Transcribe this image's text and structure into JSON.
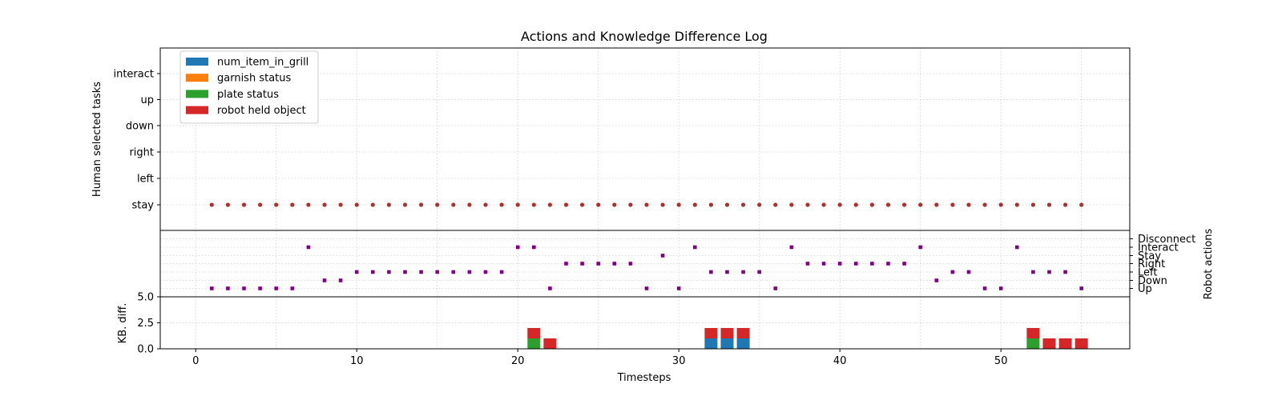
{
  "chart_data": [
    {
      "panel": "human",
      "type": "scatter",
      "title": "Actions and Knowledge Difference Log",
      "ylabel": "Human selected tasks",
      "y_categories": [
        "stay",
        "left",
        "right",
        "down",
        "up",
        "interact"
      ],
      "xlim": [
        -2.2,
        58
      ],
      "grid": true,
      "legend_placement": "upper-left",
      "legend": [
        {
          "label": "num_item_in_grill",
          "color": "#1f77b4"
        },
        {
          "label": "garnish status",
          "color": "#ff7f0e"
        },
        {
          "label": "plate status",
          "color": "#2ca02c"
        },
        {
          "label": "robot held object",
          "color": "#d62728"
        }
      ],
      "marker_color": "#a83232",
      "series": [
        {
          "x": [
            1,
            2,
            3,
            4,
            5,
            6,
            7,
            8,
            9,
            10,
            11,
            12,
            13,
            14,
            15,
            16,
            17,
            18,
            19,
            20,
            21,
            22,
            23,
            24,
            25,
            26,
            27,
            28,
            29,
            30,
            31,
            32,
            33,
            34,
            35,
            36,
            37,
            38,
            39,
            40,
            41,
            42,
            43,
            44,
            45,
            46,
            47,
            48,
            49,
            50,
            51,
            52,
            53,
            54,
            55
          ],
          "y": [
            "stay",
            "stay",
            "stay",
            "stay",
            "stay",
            "stay",
            "stay",
            "stay",
            "stay",
            "stay",
            "stay",
            "stay",
            "stay",
            "stay",
            "stay",
            "stay",
            "stay",
            "stay",
            "stay",
            "stay",
            "stay",
            "stay",
            "stay",
            "stay",
            "stay",
            "stay",
            "stay",
            "stay",
            "stay",
            "stay",
            "stay",
            "stay",
            "stay",
            "stay",
            "stay",
            "stay",
            "stay",
            "stay",
            "stay",
            "stay",
            "stay",
            "stay",
            "stay",
            "stay",
            "stay",
            "stay",
            "stay",
            "stay",
            "stay",
            "stay",
            "stay",
            "stay",
            "stay",
            "stay",
            "stay"
          ]
        }
      ]
    },
    {
      "panel": "robot",
      "type": "scatter",
      "ylabel": "Robot actions",
      "y_categories": [
        "Up",
        "Down",
        "Left",
        "Right",
        "Stay",
        "Interact",
        "Disconnect"
      ],
      "grid": true,
      "marker_color": "#800080",
      "series": [
        {
          "x": [
            1,
            2,
            3,
            4,
            5,
            6,
            7,
            8,
            9,
            10,
            11,
            12,
            13,
            14,
            15,
            16,
            17,
            18,
            19,
            20,
            21,
            22,
            23,
            24,
            25,
            26,
            27,
            28,
            29,
            30,
            31,
            32,
            33,
            34,
            35,
            36,
            37,
            38,
            39,
            40,
            41,
            42,
            43,
            44,
            45,
            46,
            47,
            48,
            49,
            50,
            51,
            52,
            53,
            54,
            55
          ],
          "y": [
            "Up",
            "Up",
            "Up",
            "Up",
            "Up",
            "Up",
            "Interact",
            "Down",
            "Down",
            "Left",
            "Left",
            "Left",
            "Left",
            "Left",
            "Left",
            "Left",
            "Left",
            "Left",
            "Left",
            "Interact",
            "Interact",
            "Up",
            "Right",
            "Right",
            "Right",
            "Right",
            "Right",
            "Up",
            "Stay",
            "Up",
            "Interact",
            "Left",
            "Left",
            "Left",
            "Left",
            "Up",
            "Interact",
            "Right",
            "Right",
            "Right",
            "Right",
            "Right",
            "Right",
            "Right",
            "Interact",
            "Down",
            "Left",
            "Left",
            "Up",
            "Up",
            "Interact",
            "Left",
            "Left",
            "Left",
            "Up"
          ]
        }
      ]
    },
    {
      "panel": "kb",
      "type": "bar",
      "stacked": true,
      "xlabel": "Timesteps",
      "ylabel": "KB. diff.",
      "ylim": [
        0,
        5
      ],
      "yticks": [
        "0.0",
        "2.5",
        "5.0"
      ],
      "xticks": [
        "0",
        "10",
        "20",
        "30",
        "40",
        "50"
      ],
      "grid": true,
      "x": [
        21,
        22,
        32,
        33,
        34,
        52,
        53,
        54,
        55
      ],
      "series": [
        {
          "name": "num_item_in_grill",
          "color": "#1f77b4",
          "values": [
            0,
            0,
            1,
            1,
            1,
            0,
            0,
            0,
            0
          ]
        },
        {
          "name": "garnish status",
          "color": "#ff7f0e",
          "values": [
            0,
            0,
            0,
            0,
            0,
            0,
            0,
            0,
            0
          ]
        },
        {
          "name": "plate status",
          "color": "#2ca02c",
          "values": [
            1,
            0,
            0,
            0,
            0,
            1,
            0,
            0,
            0
          ]
        },
        {
          "name": "robot held object",
          "color": "#d62728",
          "values": [
            1,
            1,
            1,
            1,
            1,
            1,
            1,
            1,
            1
          ]
        }
      ]
    }
  ]
}
